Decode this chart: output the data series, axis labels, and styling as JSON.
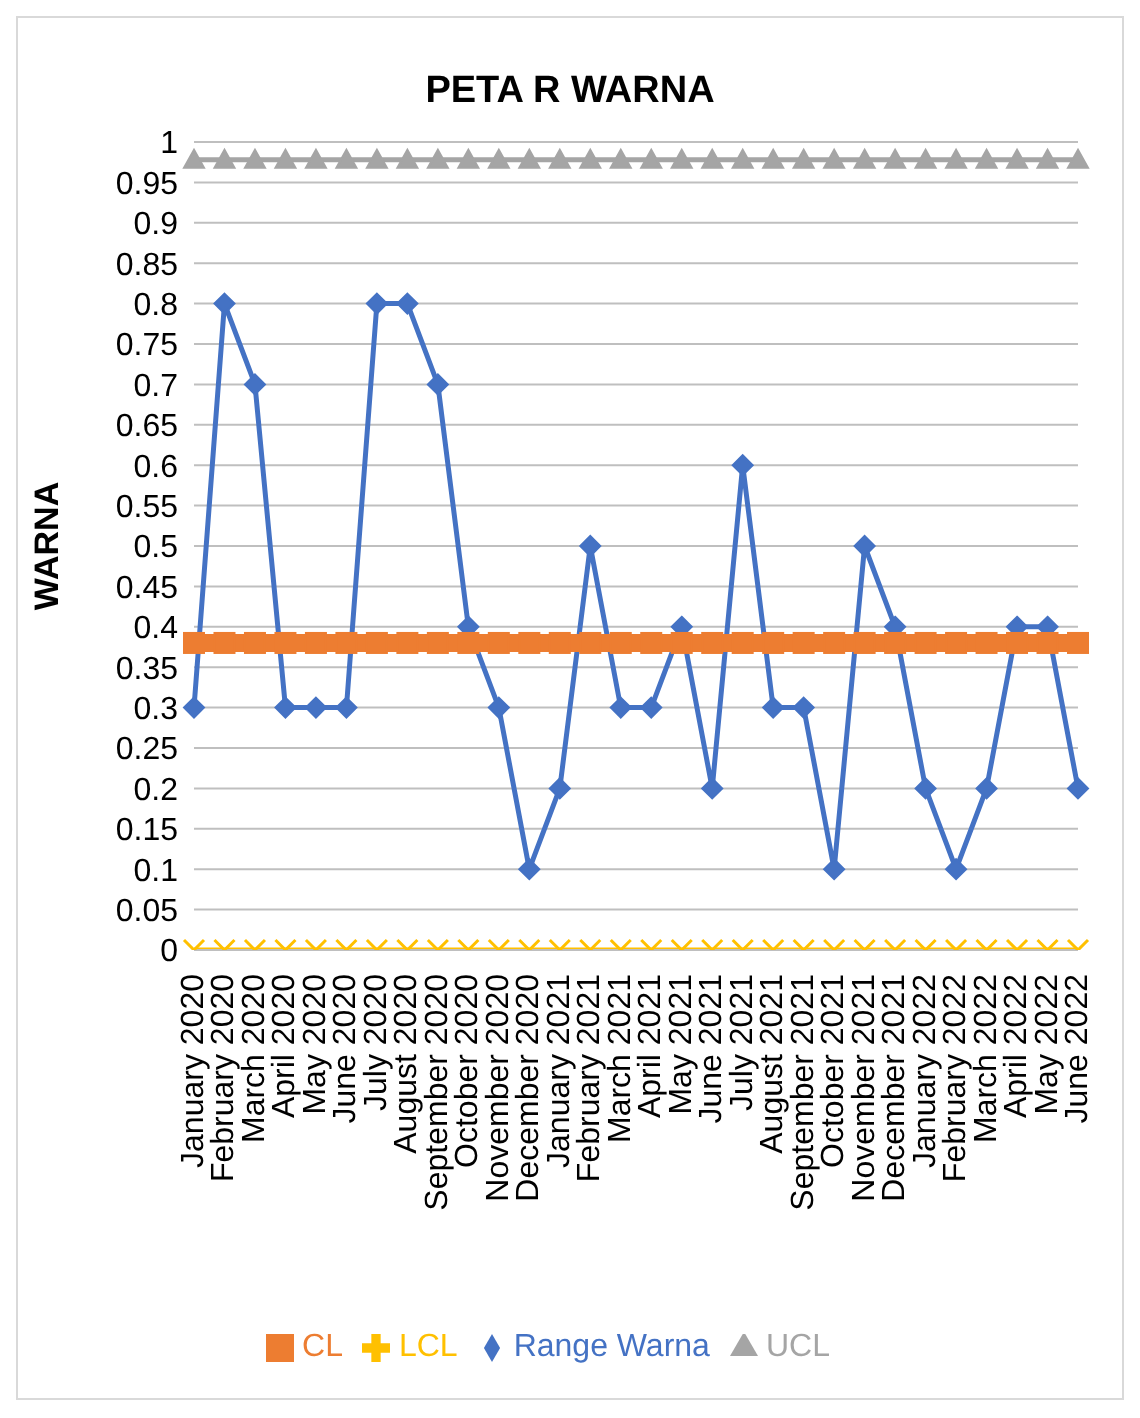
{
  "chart_data": {
    "type": "line",
    "title": "PETA R WARNA",
    "ylabel": "WARNA",
    "categories": [
      "January 2020",
      "February 2020",
      "March 2020",
      "April 2020",
      "May 2020",
      "June 2020",
      "July 2020",
      "August 2020",
      "September 2020",
      "October 2020",
      "November 2020",
      "December 2020",
      "January 2021",
      "February 2021",
      "March 2021",
      "April 2021",
      "May 2021",
      "June 2021",
      "July 2021",
      "August 2021",
      "September 2021",
      "October 2021",
      "November 2021",
      "December 2021",
      "January 2022",
      "February 2022",
      "March 2022",
      "April 2022",
      "May 2022",
      "June 2022"
    ],
    "series": [
      {
        "name": "Range Warna",
        "color": "#4472c4",
        "marker": "diamond",
        "values": [
          0.3,
          0.8,
          0.7,
          0.3,
          0.3,
          0.3,
          0.8,
          0.8,
          0.7,
          0.4,
          0.3,
          0.1,
          0.2,
          0.5,
          0.3,
          0.3,
          0.4,
          0.2,
          0.6,
          0.3,
          0.3,
          0.1,
          0.5,
          0.4,
          0.2,
          0.1,
          0.2,
          0.4,
          0.4,
          0.2
        ]
      },
      {
        "name": "CL",
        "color": "#ed7d31",
        "marker": "square",
        "values": [
          0.38,
          0.38,
          0.38,
          0.38,
          0.38,
          0.38,
          0.38,
          0.38,
          0.38,
          0.38,
          0.38,
          0.38,
          0.38,
          0.38,
          0.38,
          0.38,
          0.38,
          0.38,
          0.38,
          0.38,
          0.38,
          0.38,
          0.38,
          0.38,
          0.38,
          0.38,
          0.38,
          0.38,
          0.38,
          0.38
        ]
      },
      {
        "name": "UCL",
        "color": "#a5a5a5",
        "marker": "triangle",
        "values": [
          0.978,
          0.978,
          0.978,
          0.978,
          0.978,
          0.978,
          0.978,
          0.978,
          0.978,
          0.978,
          0.978,
          0.978,
          0.978,
          0.978,
          0.978,
          0.978,
          0.978,
          0.978,
          0.978,
          0.978,
          0.978,
          0.978,
          0.978,
          0.978,
          0.978,
          0.978,
          0.978,
          0.978,
          0.978,
          0.978
        ]
      },
      {
        "name": "LCL",
        "color": "#ffc000",
        "marker": "cross",
        "values": [
          0,
          0,
          0,
          0,
          0,
          0,
          0,
          0,
          0,
          0,
          0,
          0,
          0,
          0,
          0,
          0,
          0,
          0,
          0,
          0,
          0,
          0,
          0,
          0,
          0,
          0,
          0,
          0,
          0,
          0
        ]
      }
    ],
    "ylim": [
      0,
      1
    ],
    "yticks": [
      0,
      0.05,
      0.1,
      0.15,
      0.2,
      0.25,
      0.3,
      0.35,
      0.4,
      0.45,
      0.5,
      0.55,
      0.6,
      0.65,
      0.7,
      0.75,
      0.8,
      0.85,
      0.9,
      0.95,
      1
    ],
    "grid": "y",
    "legend": "bottom"
  }
}
